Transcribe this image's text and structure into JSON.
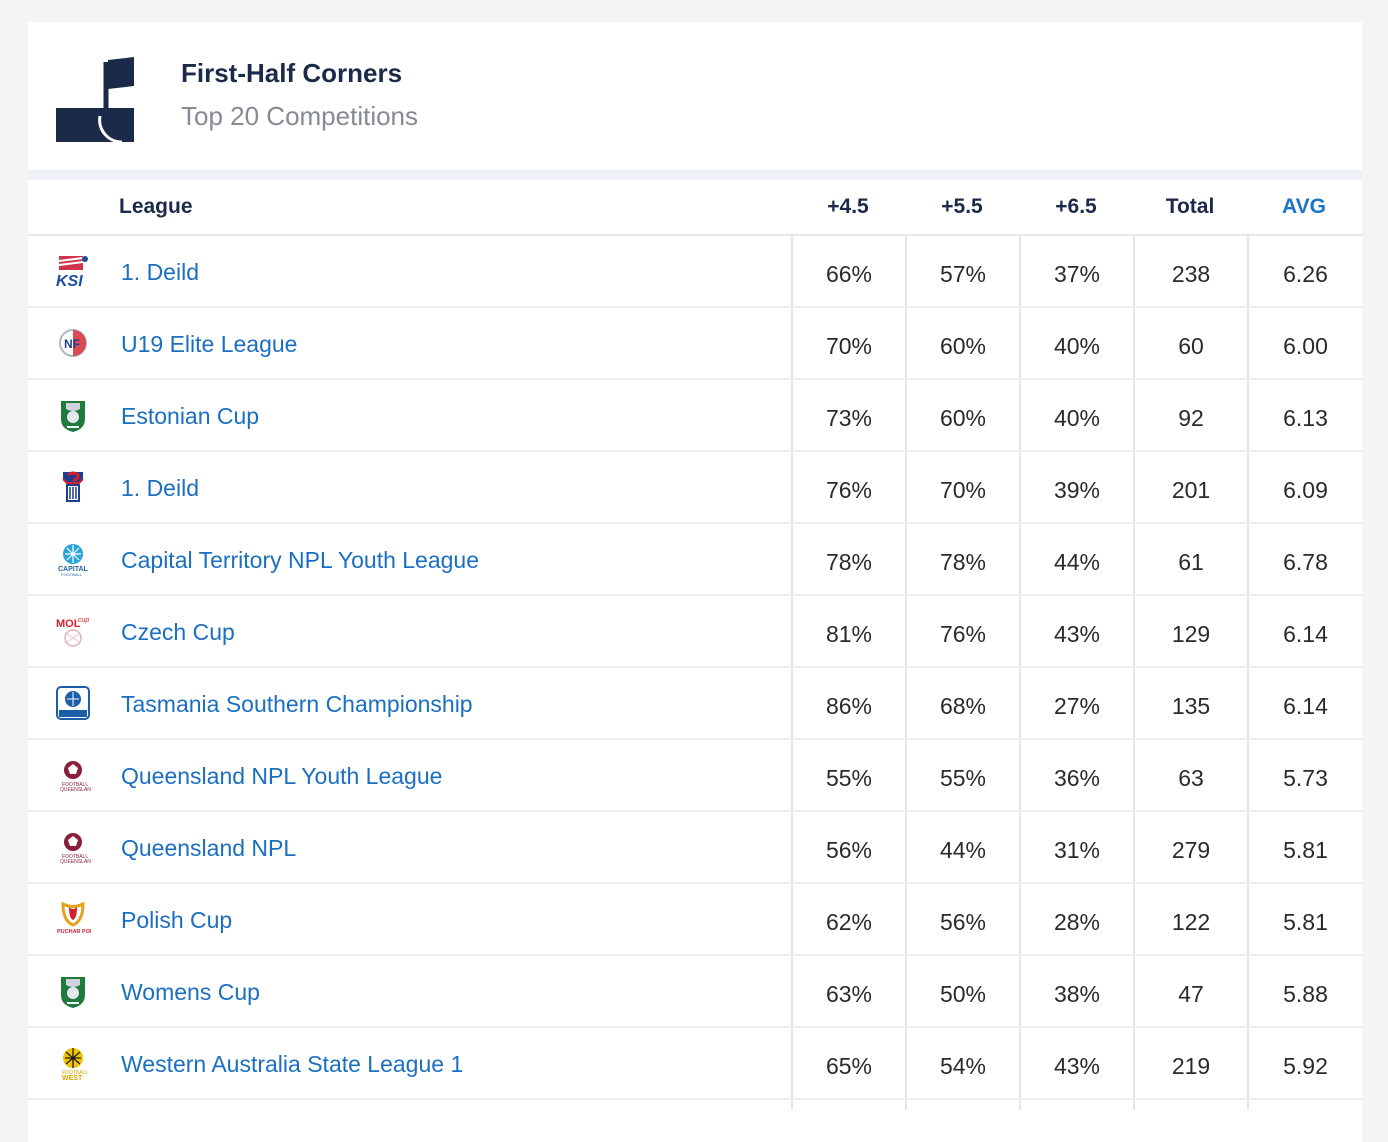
{
  "header": {
    "title": "First-Half Corners",
    "subtitle": "Top 20 Competitions",
    "icon": "corner-flag-icon"
  },
  "columns": {
    "league": "League",
    "c1": "+4.5",
    "c2": "+5.5",
    "c3": "+6.5",
    "total": "Total",
    "avg": "AVG"
  },
  "colors": {
    "navy": "#1c2a4a",
    "link": "#1b6fc2",
    "avg_header": "#1b75c9",
    "subtitle": "#858a95"
  },
  "rows": [
    {
      "league": "1. Deild",
      "logo": "ksi-logo-icon",
      "c1": "66%",
      "c2": "57%",
      "c3": "37%",
      "total": "238",
      "avg": "6.26"
    },
    {
      "league": "U19 Elite League",
      "logo": "nff-logo-icon",
      "c1": "70%",
      "c2": "60%",
      "c3": "40%",
      "total": "60",
      "avg": "6.00"
    },
    {
      "league": "Estonian Cup",
      "logo": "estonian-cup-logo-icon",
      "c1": "73%",
      "c2": "60%",
      "c3": "40%",
      "total": "92",
      "avg": "6.13"
    },
    {
      "league": "1. Deild",
      "logo": "faroe-fa-logo-icon",
      "c1": "76%",
      "c2": "70%",
      "c3": "39%",
      "total": "201",
      "avg": "6.09"
    },
    {
      "league": "Capital Territory NPL Youth League",
      "logo": "capital-football-logo-icon",
      "c1": "78%",
      "c2": "78%",
      "c3": "44%",
      "total": "61",
      "avg": "6.78"
    },
    {
      "league": "Czech Cup",
      "logo": "mol-cup-logo-icon",
      "c1": "81%",
      "c2": "76%",
      "c3": "43%",
      "total": "129",
      "avg": "6.14"
    },
    {
      "league": "Tasmania Southern Championship",
      "logo": "southern-championship-logo-icon",
      "c1": "86%",
      "c2": "68%",
      "c3": "27%",
      "total": "135",
      "avg": "6.14"
    },
    {
      "league": "Queensland NPL Youth League",
      "logo": "football-queensland-logo-icon",
      "c1": "55%",
      "c2": "55%",
      "c3": "36%",
      "total": "63",
      "avg": "5.73"
    },
    {
      "league": "Queensland NPL",
      "logo": "football-queensland-logo-icon",
      "c1": "56%",
      "c2": "44%",
      "c3": "31%",
      "total": "279",
      "avg": "5.81"
    },
    {
      "league": "Polish Cup",
      "logo": "polish-cup-logo-icon",
      "c1": "62%",
      "c2": "56%",
      "c3": "28%",
      "total": "122",
      "avg": "5.81"
    },
    {
      "league": "Womens Cup",
      "logo": "womens-cup-logo-icon",
      "c1": "63%",
      "c2": "50%",
      "c3": "38%",
      "total": "47",
      "avg": "5.88"
    },
    {
      "league": "Western Australia State League 1",
      "logo": "football-west-logo-icon",
      "c1": "65%",
      "c2": "54%",
      "c3": "43%",
      "total": "219",
      "avg": "5.92"
    }
  ]
}
